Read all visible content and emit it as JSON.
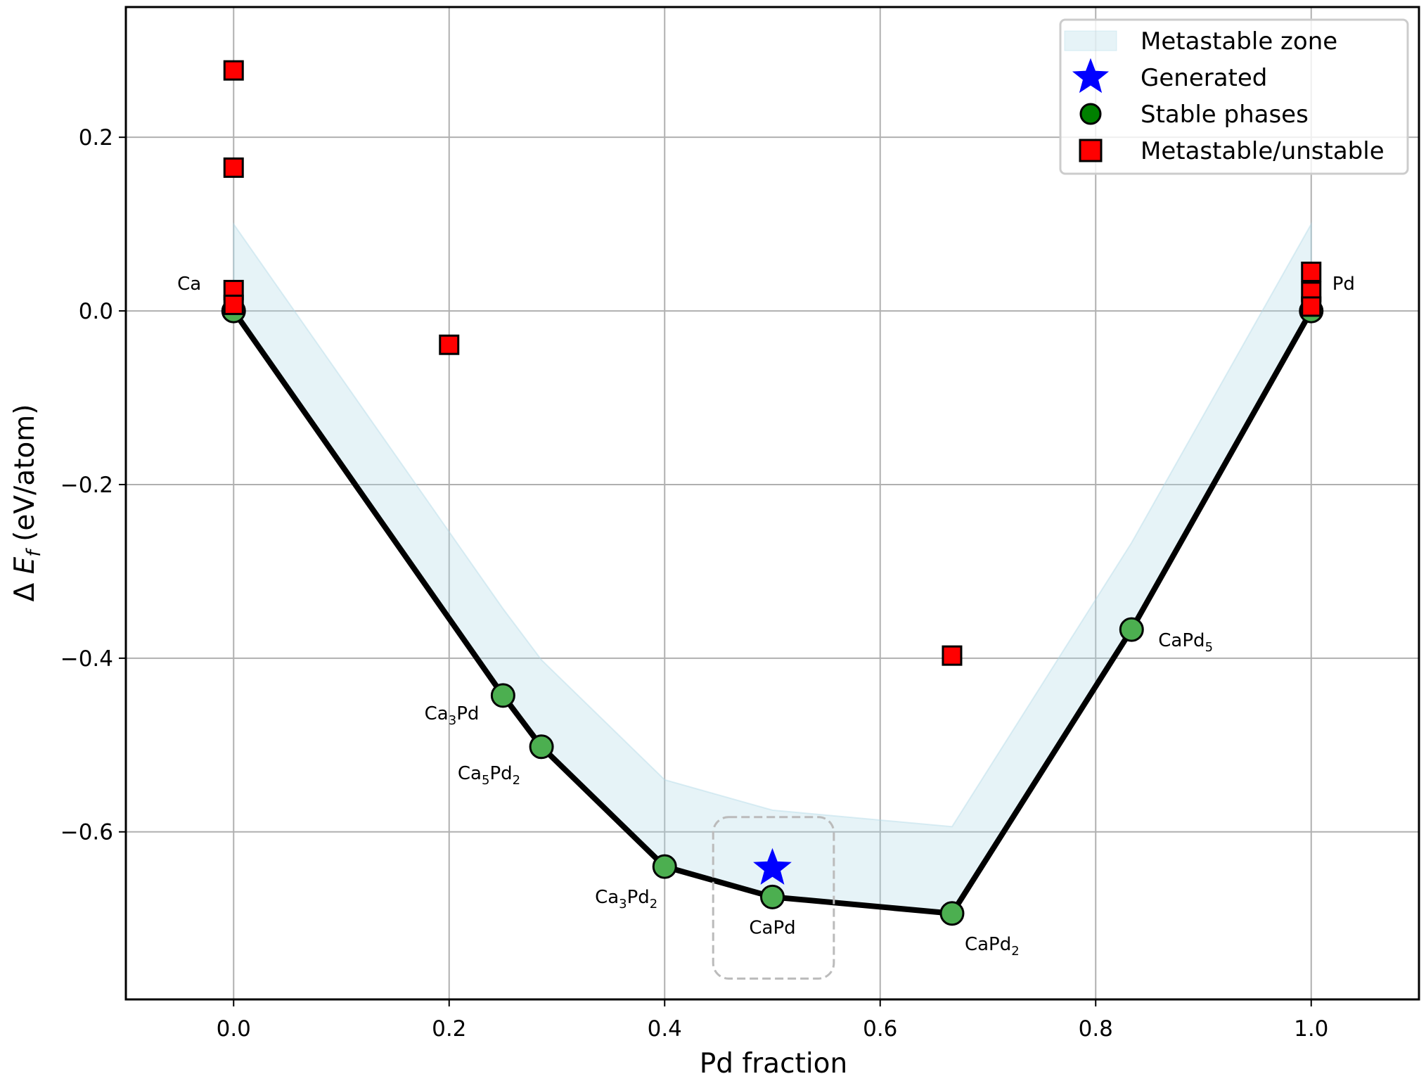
{
  "chart_data": {
    "type": "scatter",
    "title": "",
    "xlabel": "Pd fraction",
    "ylabel_prefix": "Δ ",
    "ylabel_var": "E",
    "ylabel_sub": "f",
    "ylabel_suffix": " (eV/atom)",
    "xlim": [
      -0.1,
      1.1
    ],
    "ylim": [
      -0.793,
      0.35
    ],
    "xticks": [
      0.0,
      0.2,
      0.4,
      0.6,
      0.8,
      1.0
    ],
    "xtick_labels": [
      "0.0",
      "0.2",
      "0.4",
      "0.6",
      "0.8",
      "1.0"
    ],
    "yticks": [
      -0.6,
      -0.4,
      -0.2,
      0.0,
      0.2
    ],
    "ytick_labels": [
      "−0.6",
      "−0.4",
      "−0.2",
      "0.0",
      "0.2"
    ],
    "grid": true,
    "legend_position": "top-right",
    "colors": {
      "zone": "#add8e6",
      "star": "#0000ff",
      "stable": "#4caf50",
      "stable_legend": "#008000",
      "unstable": "#ff0000",
      "hull": "#000000",
      "grid": "#b0b0b0",
      "box": "#bbbbbb"
    },
    "legend": [
      {
        "label": "Metastable zone",
        "marker": "patch"
      },
      {
        "label": "Generated",
        "marker": "star"
      },
      {
        "label": "Stable phases",
        "marker": "circle"
      },
      {
        "label": "Metastable/unstable",
        "marker": "square"
      }
    ],
    "metastable_zone_offset": 0.1,
    "stable_phases": [
      {
        "x": 0.0,
        "y": 0.0,
        "label": "Ca",
        "sub": "",
        "rest": "",
        "sub2": ""
      },
      {
        "x": 0.25,
        "y": -0.443,
        "label": "Ca",
        "sub": "3",
        "rest": "Pd",
        "sub2": ""
      },
      {
        "x": 0.2857,
        "y": -0.502,
        "label": "Ca",
        "sub": "5",
        "rest": "Pd",
        "sub2": "2"
      },
      {
        "x": 0.4,
        "y": -0.64,
        "label": "Ca",
        "sub": "3",
        "rest": "Pd",
        "sub2": "2"
      },
      {
        "x": 0.5,
        "y": -0.675,
        "label": "CaPd",
        "sub": "",
        "rest": "",
        "sub2": ""
      },
      {
        "x": 0.6667,
        "y": -0.694,
        "label": "CaPd",
        "sub": "2",
        "rest": "",
        "sub2": ""
      },
      {
        "x": 0.8333,
        "y": -0.367,
        "label": "CaPd",
        "sub": "5",
        "rest": "",
        "sub2": ""
      },
      {
        "x": 1.0,
        "y": 0.0,
        "label": "Pd",
        "sub": "",
        "rest": "",
        "sub2": ""
      }
    ],
    "unstable": [
      {
        "x": 0.0,
        "y": 0.277
      },
      {
        "x": 0.0,
        "y": 0.165
      },
      {
        "x": 0.0,
        "y": 0.024
      },
      {
        "x": 0.0,
        "y": 0.007
      },
      {
        "x": 0.2,
        "y": -0.039
      },
      {
        "x": 0.6667,
        "y": -0.397
      },
      {
        "x": 1.0,
        "y": 0.045
      },
      {
        "x": 1.0,
        "y": 0.022
      },
      {
        "x": 1.0,
        "y": 0.005
      }
    ],
    "generated": {
      "x": 0.5,
      "y": -0.642
    },
    "highlight_box": {
      "x0": 0.445,
      "x1": 0.557,
      "y0": -0.769,
      "y1": -0.583
    }
  }
}
